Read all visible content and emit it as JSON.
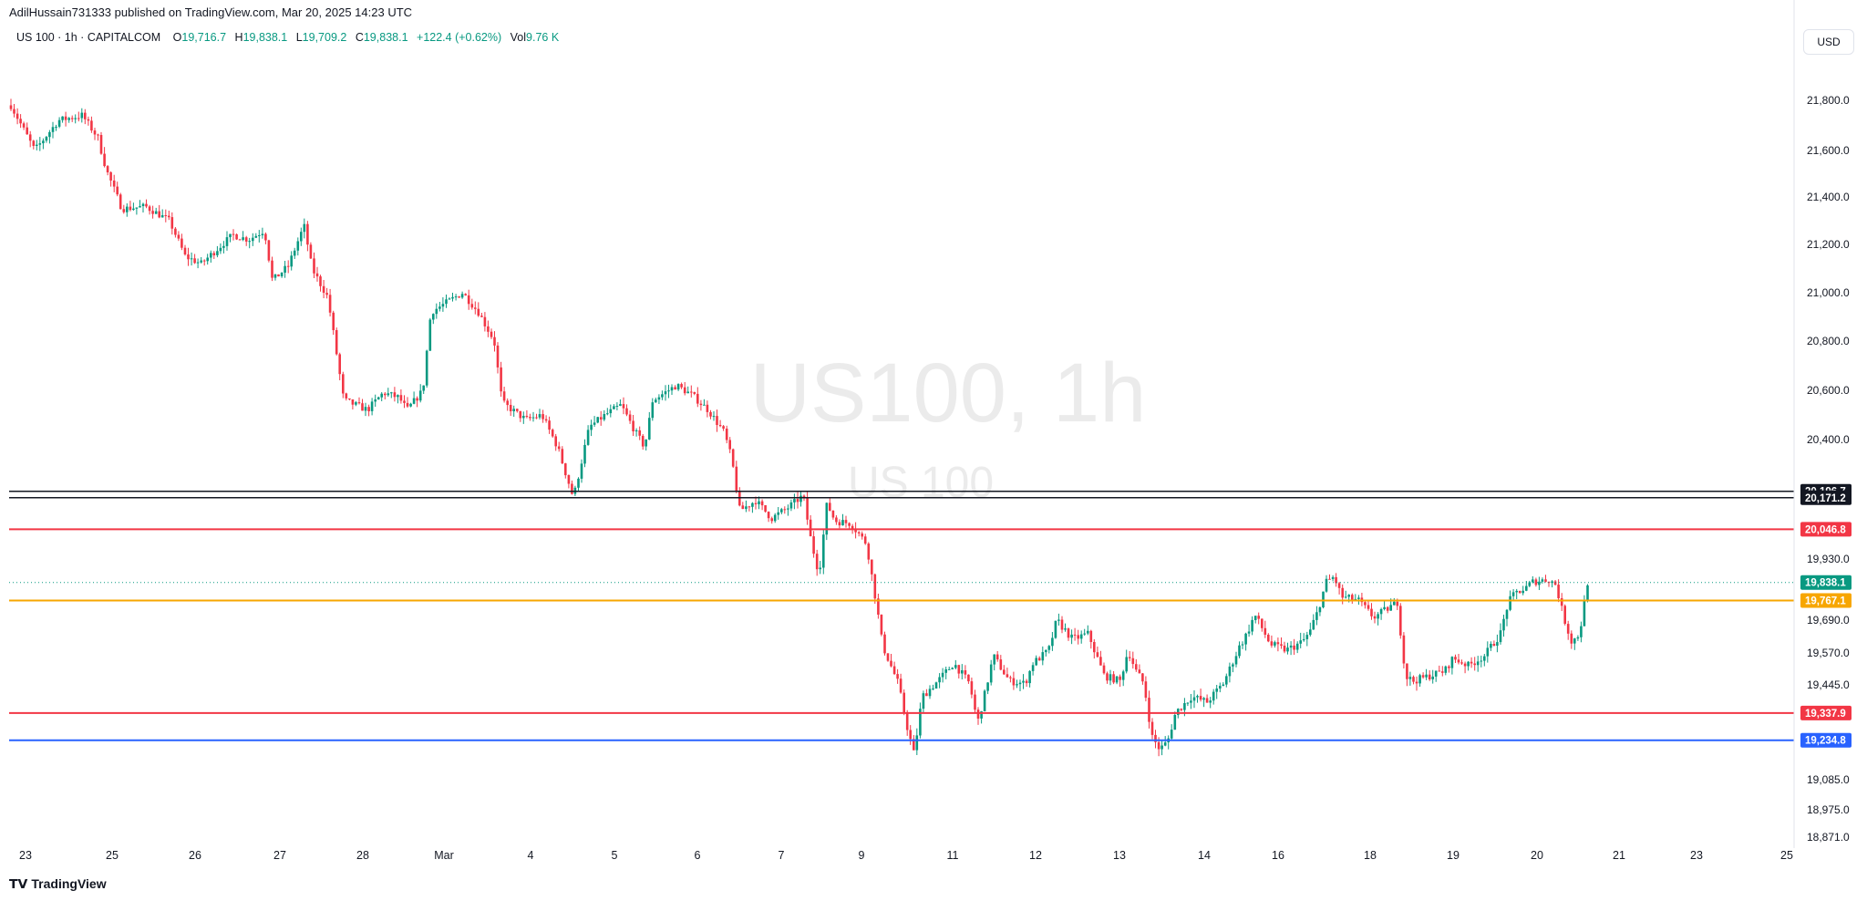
{
  "header": {
    "published": "AdilHussain731333 published on TradingView.com, Mar 20, 2025 14:23 UTC"
  },
  "legend": {
    "symbol": "US 100 · 1h · CAPITALCOM",
    "o_label": "O",
    "o_value": "19,716.7",
    "h_label": "H",
    "h_value": "19,838.1",
    "l_label": "L",
    "l_value": "19,709.2",
    "c_label": "C",
    "c_value": "19,838.1",
    "change": "+122.4 (+0.62%)",
    "vol_label": "Vol",
    "vol_value": "9.76 K"
  },
  "currency_button": "USD",
  "watermark": {
    "line1": "US100, 1h",
    "line2": "US 100"
  },
  "footer": {
    "logo_text": "TradingView"
  },
  "colors": {
    "up": "#089981",
    "down": "#f23645",
    "blue": "#2962ff",
    "orange": "#f7a600",
    "black": "#131722"
  },
  "chart_data": {
    "type": "candlestick",
    "y_axis_ticks": [
      {
        "label": "21,800.0",
        "value": 21800
      },
      {
        "label": "21,600.0",
        "value": 21600
      },
      {
        "label": "21,400.0",
        "value": 21400
      },
      {
        "label": "21,200.0",
        "value": 21200
      },
      {
        "label": "21,000.0",
        "value": 21000
      },
      {
        "label": "20,800.0",
        "value": 20800
      },
      {
        "label": "20,600.0",
        "value": 20600
      },
      {
        "label": "20,400.0",
        "value": 20400
      },
      {
        "label": "19,930.0",
        "value": 19930
      },
      {
        "label": "19,690.0",
        "value": 19690
      },
      {
        "label": "19,570.0",
        "value": 19570
      },
      {
        "label": "19,445.0",
        "value": 19445
      },
      {
        "label": "19,085.0",
        "value": 19085
      },
      {
        "label": "18,975.0",
        "value": 18975
      },
      {
        "label": "18,871.0",
        "value": 18871
      }
    ],
    "x_axis_ticks": [
      "23",
      "25",
      "26",
      "27",
      "28",
      "Mar",
      "4",
      "5",
      "6",
      "7",
      "9",
      "11",
      "12",
      "13",
      "14",
      "16",
      "18",
      "19",
      "20",
      "21",
      "23",
      "25"
    ],
    "horizontal_levels": [
      {
        "label": "20,196.7",
        "value": 20196.7,
        "color": "#131722"
      },
      {
        "label": "20,171.2",
        "value": 20171.2,
        "color": "#131722"
      },
      {
        "label": "20,046.8",
        "value": 20046.8,
        "color": "#f23645"
      },
      {
        "label": "19,838.1",
        "value": 19838.1,
        "color": "#089981",
        "dotted": true
      },
      {
        "label": "19,767.1",
        "value": 19767.1,
        "color": "#f7a600"
      },
      {
        "label": "19,337.9",
        "value": 19337.9,
        "color": "#f23645"
      },
      {
        "label": "19,234.8",
        "value": 19234.8,
        "color": "#2962ff"
      }
    ],
    "price_path": [
      [
        0,
        21780
      ],
      [
        3,
        21600
      ],
      [
        6,
        21720
      ],
      [
        9,
        21740
      ],
      [
        11,
        21650
      ],
      [
        12,
        21520
      ],
      [
        14,
        21350
      ],
      [
        17,
        21360
      ],
      [
        20,
        21300
      ],
      [
        22,
        21150
      ],
      [
        24,
        21120
      ],
      [
        26,
        21180
      ],
      [
        28,
        21240
      ],
      [
        30,
        21220
      ],
      [
        32,
        21260
      ],
      [
        33,
        21050
      ],
      [
        35,
        21110
      ],
      [
        37,
        21280
      ],
      [
        38,
        21100
      ],
      [
        40,
        20980
      ],
      [
        42,
        20560
      ],
      [
        45,
        20520
      ],
      [
        47,
        20590
      ],
      [
        49,
        20570
      ],
      [
        50,
        20520
      ],
      [
        52,
        20600
      ],
      [
        53,
        20920
      ],
      [
        55,
        20960
      ],
      [
        57,
        21000
      ],
      [
        59,
        20920
      ],
      [
        61,
        20800
      ],
      [
        62,
        20550
      ],
      [
        65,
        20480
      ],
      [
        67,
        20500
      ],
      [
        69,
        20370
      ],
      [
        71,
        20170
      ],
      [
        73,
        20450
      ],
      [
        75,
        20500
      ],
      [
        77,
        20540
      ],
      [
        79,
        20420
      ],
      [
        80,
        20370
      ],
      [
        81,
        20560
      ],
      [
        84,
        20620
      ],
      [
        86,
        20580
      ],
      [
        88,
        20520
      ],
      [
        90,
        20430
      ],
      [
        91,
        20320
      ],
      [
        92,
        20120
      ],
      [
        94,
        20160
      ],
      [
        96,
        20090
      ],
      [
        98,
        20130
      ],
      [
        100,
        20180
      ],
      [
        101,
        20000
      ],
      [
        102,
        19870
      ],
      [
        103,
        20150
      ],
      [
        104,
        20080
      ],
      [
        106,
        20070
      ],
      [
        108,
        19990
      ],
      [
        109,
        19800
      ],
      [
        110,
        19600
      ],
      [
        112,
        19450
      ],
      [
        113,
        19300
      ],
      [
        114,
        19180
      ],
      [
        115,
        19400
      ],
      [
        117,
        19460
      ],
      [
        119,
        19530
      ],
      [
        121,
        19450
      ],
      [
        122,
        19300
      ],
      [
        123,
        19420
      ],
      [
        124,
        19560
      ],
      [
        126,
        19460
      ],
      [
        128,
        19450
      ],
      [
        129,
        19530
      ],
      [
        131,
        19580
      ],
      [
        132,
        19690
      ],
      [
        134,
        19620
      ],
      [
        136,
        19640
      ],
      [
        138,
        19480
      ],
      [
        140,
        19460
      ],
      [
        141,
        19580
      ],
      [
        142,
        19500
      ],
      [
        143,
        19450
      ],
      [
        144,
        19250
      ],
      [
        145,
        19200
      ],
      [
        146,
        19230
      ],
      [
        147,
        19340
      ],
      [
        149,
        19400
      ],
      [
        151,
        19380
      ],
      [
        153,
        19450
      ],
      [
        154,
        19520
      ],
      [
        155,
        19590
      ],
      [
        156,
        19640
      ],
      [
        157,
        19710
      ],
      [
        159,
        19600
      ],
      [
        161,
        19580
      ],
      [
        163,
        19610
      ],
      [
        164,
        19650
      ],
      [
        165,
        19730
      ],
      [
        166,
        19840
      ],
      [
        167,
        19860
      ],
      [
        168,
        19780
      ],
      [
        170,
        19770
      ],
      [
        172,
        19700
      ],
      [
        174,
        19740
      ],
      [
        175,
        19760
      ],
      [
        176,
        19480
      ],
      [
        177,
        19460
      ],
      [
        179,
        19480
      ],
      [
        181,
        19500
      ],
      [
        182,
        19550
      ],
      [
        184,
        19520
      ],
      [
        186,
        19560
      ],
      [
        188,
        19640
      ],
      [
        189,
        19760
      ],
      [
        190,
        19800
      ],
      [
        191,
        19810
      ],
      [
        192,
        19840
      ],
      [
        194,
        19850
      ],
      [
        195,
        19830
      ],
      [
        196,
        19700
      ],
      [
        197,
        19610
      ],
      [
        198,
        19640
      ],
      [
        199,
        19838.1
      ]
    ]
  }
}
